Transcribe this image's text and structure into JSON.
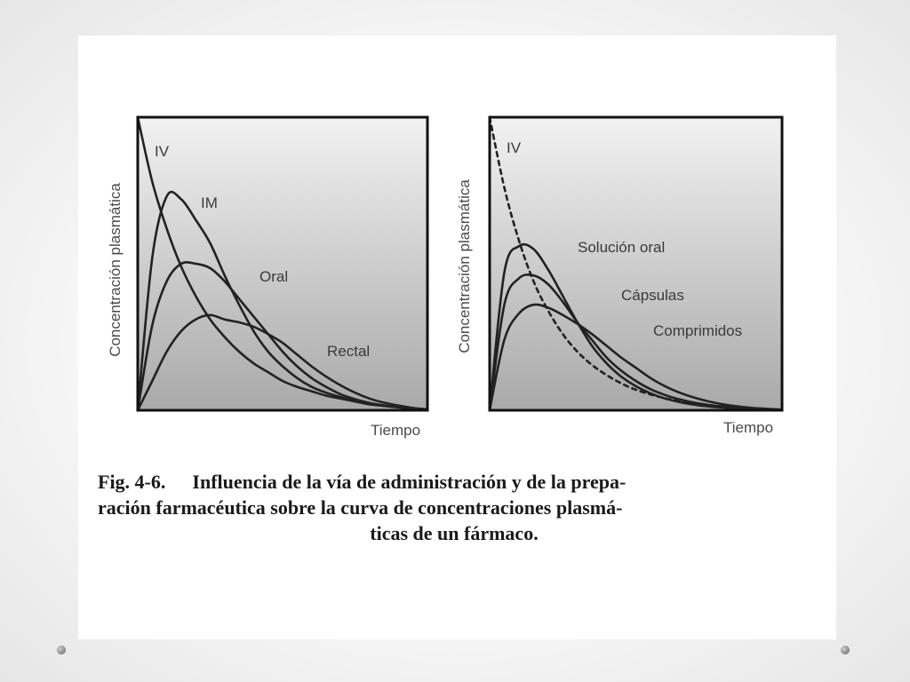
{
  "caption": {
    "number": "Fig. 4-6.",
    "line1": "Influencia de la vía de administración y de la prepa-",
    "line2": "ración farmacéutica sobre la curva de concentraciones plasmá-",
    "line3": "ticas de un fármaco."
  },
  "colors": {
    "plot_background_top": "#f2f2f2",
    "plot_background_bottom": "#a9a9a9",
    "curve": "#222222",
    "frame": "#111111"
  },
  "chart_data": [
    {
      "type": "line",
      "xlabel": "Tiempo",
      "ylabel": "Concentración plasmática",
      "xlim": [
        0,
        10
      ],
      "ylim": [
        0,
        10
      ],
      "grid": false,
      "legend": "none",
      "x": [
        0,
        0.5,
        1,
        1.5,
        2,
        2.5,
        3,
        3.5,
        4,
        4.5,
        5,
        5.5,
        6,
        6.5,
        7,
        7.5,
        8,
        8.5,
        9,
        9.5,
        10
      ],
      "series": [
        {
          "name": "IV",
          "style": "solid",
          "values": [
            10,
            7.8,
            6.2,
            4.9,
            3.9,
            3.1,
            2.5,
            2.0,
            1.6,
            1.3,
            1.0,
            0.8,
            0.65,
            0.5,
            0.4,
            0.3,
            0.2,
            0.15,
            0.1,
            0.05,
            0.03
          ]
        },
        {
          "name": "IM",
          "style": "solid",
          "values": [
            0,
            5.2,
            7.3,
            7.2,
            6.5,
            5.7,
            4.6,
            3.6,
            2.7,
            2.0,
            1.5,
            1.1,
            0.8,
            0.6,
            0.45,
            0.32,
            0.22,
            0.15,
            0.1,
            0.06,
            0.03
          ]
        },
        {
          "name": "Oral",
          "style": "solid",
          "values": [
            0,
            2.9,
            4.4,
            5.0,
            5.0,
            4.85,
            4.4,
            3.8,
            3.2,
            2.6,
            2.0,
            1.5,
            1.1,
            0.8,
            0.55,
            0.38,
            0.25,
            0.17,
            0.11,
            0.06,
            0.03
          ]
        },
        {
          "name": "Rectal",
          "style": "solid",
          "values": [
            0,
            1.0,
            2.0,
            2.7,
            3.1,
            3.25,
            3.1,
            3.0,
            2.85,
            2.6,
            2.3,
            1.9,
            1.5,
            1.15,
            0.85,
            0.6,
            0.4,
            0.26,
            0.16,
            0.08,
            0.03
          ]
        }
      ]
    },
    {
      "type": "line",
      "xlabel": "Tiempo",
      "ylabel": "Concentración plasmática",
      "xlim": [
        0,
        10
      ],
      "ylim": [
        0,
        10
      ],
      "grid": false,
      "legend": "none",
      "x": [
        0,
        0.5,
        1,
        1.5,
        2,
        2.5,
        3,
        3.5,
        4,
        4.5,
        5,
        5.5,
        6,
        6.5,
        7,
        7.5,
        8,
        8.5,
        9,
        9.5,
        10
      ],
      "series": [
        {
          "name": "IV",
          "style": "dashed",
          "values": [
            10,
            7.6,
            5.8,
            4.4,
            3.4,
            2.6,
            2.0,
            1.55,
            1.2,
            0.92,
            0.7,
            0.54,
            0.41,
            0.31,
            0.24,
            0.18,
            0.13,
            0.09,
            0.06,
            0.04,
            0.02
          ]
        },
        {
          "name": "Solución oral",
          "style": "solid",
          "values": [
            0,
            4.7,
            5.6,
            5.5,
            4.8,
            3.9,
            3.0,
            2.2,
            1.6,
            1.15,
            0.82,
            0.58,
            0.4,
            0.28,
            0.19,
            0.13,
            0.09,
            0.06,
            0.04,
            0.03,
            0.02
          ]
        },
        {
          "name": "Cápsulas",
          "style": "solid",
          "values": [
            0,
            3.6,
            4.5,
            4.6,
            4.3,
            3.7,
            3.0,
            2.4,
            1.8,
            1.35,
            1.0,
            0.72,
            0.52,
            0.37,
            0.26,
            0.18,
            0.12,
            0.08,
            0.05,
            0.03,
            0.02
          ]
        },
        {
          "name": "Comprimidos",
          "style": "solid",
          "values": [
            0,
            2.4,
            3.3,
            3.6,
            3.5,
            3.25,
            2.95,
            2.6,
            2.2,
            1.8,
            1.45,
            1.1,
            0.82,
            0.6,
            0.43,
            0.3,
            0.2,
            0.13,
            0.08,
            0.05,
            0.02
          ]
        }
      ]
    }
  ]
}
